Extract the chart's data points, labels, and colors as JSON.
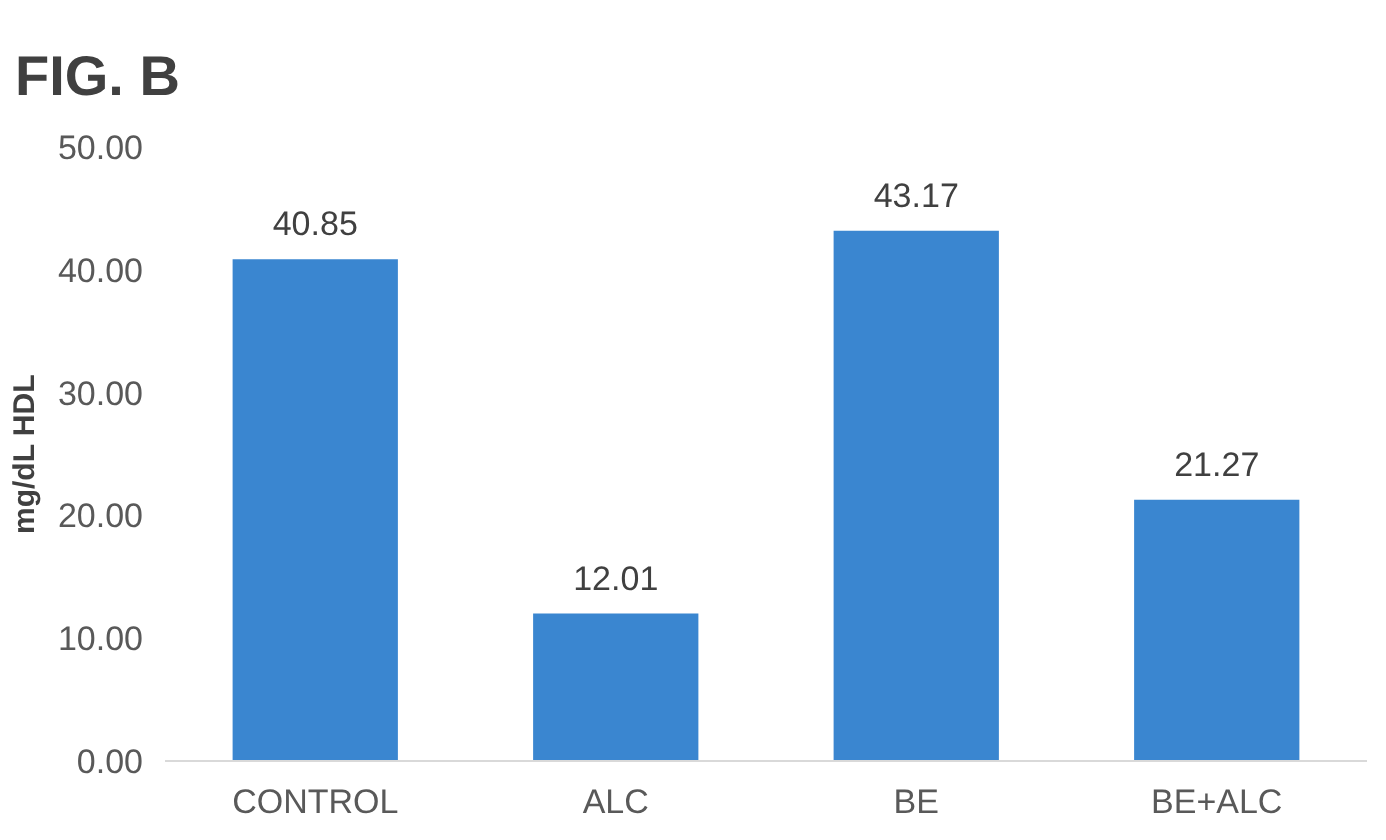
{
  "chart_data": {
    "type": "bar",
    "title": "FIG. B",
    "ylabel": "mg/dL HDL",
    "categories": [
      "CONTROL",
      "ALC",
      "BE",
      "BE+ALC"
    ],
    "values": [
      40.85,
      12.01,
      43.17,
      21.27
    ],
    "color": "#3a86d0",
    "ylim": [
      0,
      50
    ],
    "yticks": [
      {
        "value": 0,
        "label": "0.00"
      },
      {
        "value": 10,
        "label": "10.00"
      },
      {
        "value": 20,
        "label": "20.00"
      },
      {
        "value": 30,
        "label": "30.00"
      },
      {
        "value": 40,
        "label": "40.00"
      },
      {
        "value": 50,
        "label": "50.00"
      }
    ],
    "data_labels": true,
    "grid": false
  }
}
